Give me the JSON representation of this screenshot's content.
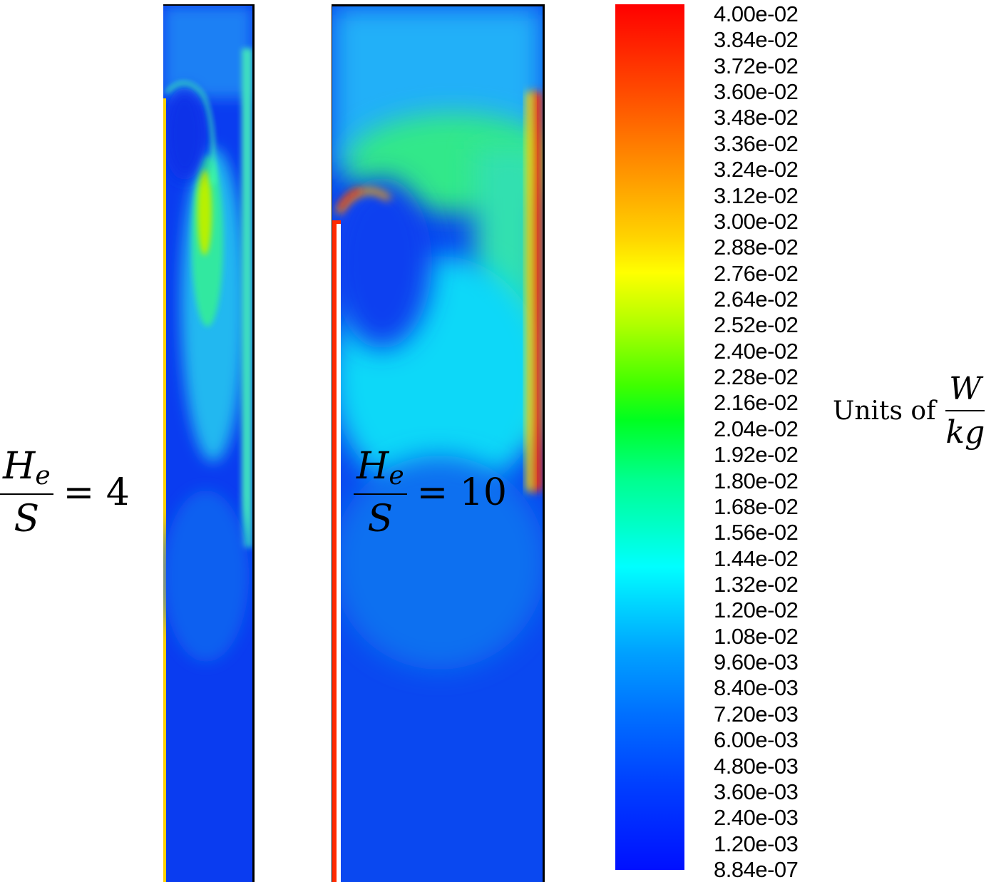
{
  "panels": [
    {
      "ratio_lhs_num": "H",
      "ratio_lhs_sub": "e",
      "ratio_lhs_den": "S",
      "ratio_value": "= 4"
    },
    {
      "ratio_lhs_num": "H",
      "ratio_lhs_sub": "e",
      "ratio_lhs_den": "S",
      "ratio_value": "= 10"
    }
  ],
  "colorbar": {
    "labels": [
      "4.00e-02",
      "3.84e-02",
      "3.72e-02",
      "3.60e-02",
      "3.48e-02",
      "3.36e-02",
      "3.24e-02",
      "3.12e-02",
      "3.00e-02",
      "2.88e-02",
      "2.76e-02",
      "2.64e-02",
      "2.52e-02",
      "2.40e-02",
      "2.28e-02",
      "2.16e-02",
      "2.04e-02",
      "1.92e-02",
      "1.80e-02",
      "1.68e-02",
      "1.56e-02",
      "1.44e-02",
      "1.32e-02",
      "1.20e-02",
      "1.08e-02",
      "9.60e-03",
      "8.40e-03",
      "7.20e-03",
      "6.00e-03",
      "4.80e-03",
      "3.60e-03",
      "2.40e-03",
      "1.20e-03",
      "8.84e-07"
    ],
    "max_color": "#ff0000",
    "min_color": "#0010ff"
  },
  "units": {
    "prefix": "Units of",
    "num": "W",
    "den": "kg"
  }
}
